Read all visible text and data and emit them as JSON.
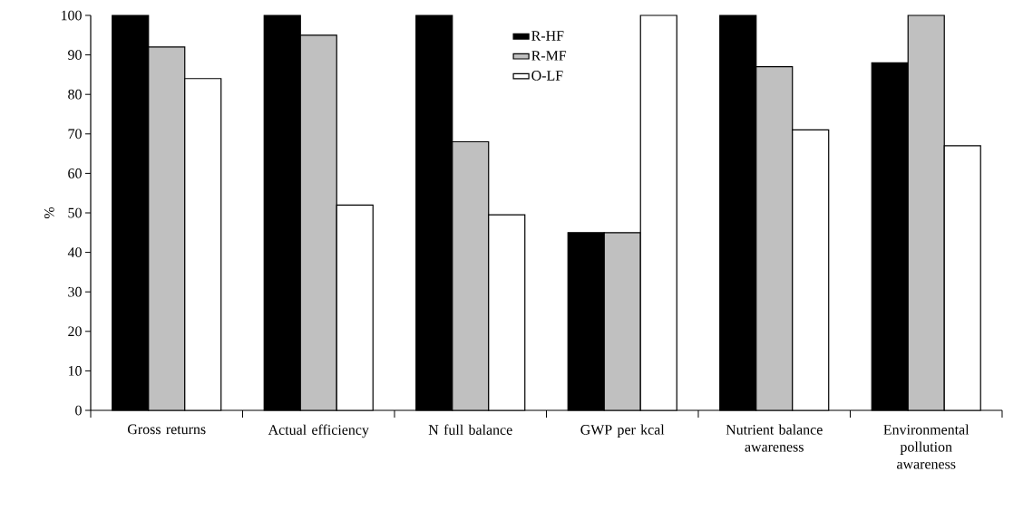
{
  "chart_data": {
    "type": "bar",
    "ylabel": "%",
    "categories": [
      "Gross returns",
      "Actual efficiency",
      "N full balance",
      "GWP per kcal",
      "Nutrient balance awareness",
      "Environmental pollution awareness"
    ],
    "series": [
      {
        "name": "R-HF",
        "color": "#000000",
        "values": [
          100,
          100,
          100,
          45,
          100,
          88
        ]
      },
      {
        "name": "R-MF",
        "color": "#c0c0c0",
        "values": [
          92,
          95,
          68,
          45,
          87,
          100
        ]
      },
      {
        "name": "O-LF",
        "color": "#ffffff",
        "values": [
          84,
          52,
          49.5,
          100,
          71,
          67
        ]
      }
    ],
    "ylim": [
      0,
      100
    ],
    "yticks": [
      0,
      10,
      20,
      30,
      40,
      50,
      60,
      70,
      80,
      90,
      100
    ],
    "grid": false,
    "legend": "top"
  }
}
